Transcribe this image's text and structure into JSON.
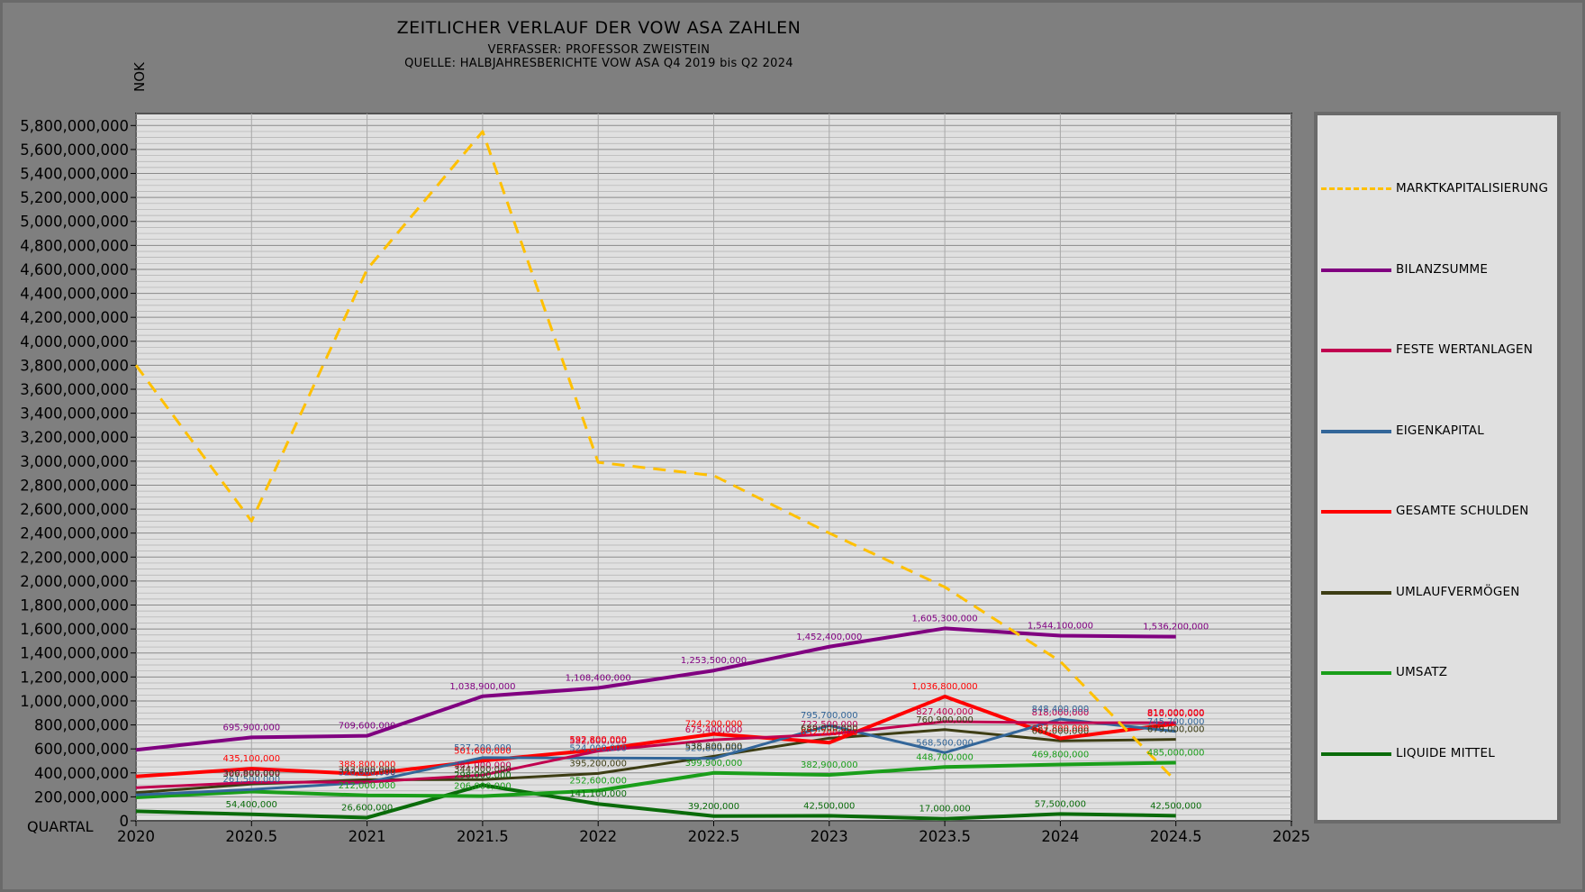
{
  "chart_data": {
    "type": "line",
    "title": "ZEITLICHER VERLAUF DER VOW ASA ZAHLEN",
    "subtitle": [
      "VERFASSER: PROFESSOR ZWEISTEIN",
      "QUELLE: HALBJAHRESBERICHTE VOW ASA Q4 2019 bis Q2 2024"
    ],
    "xlabel": "QUARTAL",
    "ylabel": "NOK",
    "xlim": [
      2020,
      2025
    ],
    "ylim": [
      0,
      5900000000
    ],
    "xticks": [
      "2020",
      "2020.5",
      "2021",
      "2021.5",
      "2022",
      "2022.5",
      "2023",
      "2023.5",
      "2024",
      "2024.5",
      "2025"
    ],
    "yticks": [
      "0",
      "200,000,000",
      "400,000,000",
      "600,000,000",
      "800,000,000",
      "1,000,000,000",
      "1,200,000,000",
      "1,400,000,000",
      "1,600,000,000",
      "1,800,000,000",
      "2,000,000,000",
      "2,200,000,000",
      "2,400,000,000",
      "2,600,000,000",
      "2,800,000,000",
      "3,000,000,000",
      "3,200,000,000",
      "3,400,000,000",
      "3,600,000,000",
      "3,800,000,000",
      "4,000,000,000",
      "4,200,000,000",
      "4,400,000,000",
      "4,600,000,000",
      "4,800,000,000",
      "5,000,000,000",
      "5,200,000,000",
      "5,400,000,000",
      "5,600,000,000",
      "5,800,000,000"
    ],
    "grid": true,
    "legend_position": "right",
    "x": [
      2020,
      2020.5,
      2021,
      2021.5,
      2022,
      2022.5,
      2023,
      2023.5,
      2024,
      2024.5
    ],
    "series": [
      {
        "name": "MARKTKAPITALISIERUNG",
        "color": "#ffc000",
        "dashed": true,
        "width": 3,
        "values": [
          3800000000,
          2500000000,
          4600000000,
          5750000000,
          2990000000,
          2880000000,
          2400000000,
          1950000000,
          1330000000,
          330000000
        ],
        "labels": []
      },
      {
        "name": "BILANZSUMME",
        "color": "#800080",
        "width": 4,
        "values": [
          592000000,
          695900000,
          709600000,
          1038900000,
          1108400000,
          1253500000,
          1452400000,
          1605300000,
          1544100000,
          1536200000
        ],
        "labels": [
          null,
          "695,900,000",
          "709,600,000",
          "1,038,900,000",
          "1,108,400,000",
          "1,253,500,000",
          "1,452,400,000",
          "1,605,300,000",
          "1,544,100,000",
          "1,536,200,000"
        ]
      },
      {
        "name": "FESTE WERTANLAGEN",
        "color": "#c0004f",
        "width": 3,
        "values": [
          276000000,
          320600000,
          323600000,
          381000000,
          582600000,
          675400000,
          722500000,
          827400000,
          818000000,
          818000000
        ],
        "labels": [
          null,
          "320,600,000",
          "323,600,000",
          "381,000,000",
          "582,600,000",
          "675,400,000",
          "722,500,000",
          "827,400,000",
          "818,000,000",
          "818,000,000"
        ]
      },
      {
        "name": "EIGENKAPITAL",
        "color": "#336699",
        "width": 3,
        "values": [
          216000000,
          261500000,
          320600000,
          527200000,
          524000000,
          520800000,
          795700000,
          568500000,
          848400000,
          745700000
        ],
        "labels": [
          null,
          "261,500,000",
          "320,600,000",
          "527,200,000",
          "524,000,000",
          "520,800,000",
          "795,700,000",
          "568,500,000",
          "848,400,000",
          "745,700,000"
        ]
      },
      {
        "name": "GESAMTE SCHULDEN",
        "color": "#ff0000",
        "width": 4,
        "values": [
          370000000,
          435100000,
          388800000,
          501600000,
          592800000,
          724200000,
          652200000,
          1036800000,
          687800000,
          810000000
        ],
        "labels": [
          null,
          "435,100,000",
          "388,800,000",
          "501,600,000",
          "592,800,000",
          "724,200,000",
          "652,200,000",
          "1,036,800,000",
          "687,800,000",
          "810,000,000"
        ]
      },
      {
        "name": "UMLAUFVERMÖGEN",
        "color": "#3d3d14",
        "width": 3,
        "values": [
          235000000,
          306800000,
          343000000,
          344000000,
          395200000,
          538800000,
          689000000,
          760900000,
          667000000,
          679000000
        ],
        "labels": [
          null,
          "306,800,000",
          "343,000,000",
          "344,000,000",
          "395,200,000",
          "538,800,000",
          "689,000,000",
          "760,900,000",
          "667,000,000",
          "679,000,000"
        ]
      },
      {
        "name": "UMSATZ",
        "color": "#1a9e1a",
        "width": 4,
        "values": [
          195000000,
          244000000,
          212000000,
          206000000,
          252600000,
          399900000,
          382900000,
          448700000,
          469800000,
          485000000
        ],
        "labels": [
          null,
          null,
          "212,000,000",
          "206,000,000",
          "252,600,000",
          "399,900,000",
          "382,900,000",
          "448,700,000",
          "469,800,000",
          "485,000,000"
        ]
      },
      {
        "name": "LIQUIDE MITTEL",
        "color": "#0a6b0a",
        "width": 4,
        "values": [
          80000000,
          54400000,
          26600000,
          298000000,
          141100000,
          39200000,
          42500000,
          17000000,
          57500000,
          42500000
        ],
        "labels": [
          null,
          "54,400,000",
          "26,600,000",
          "298,000,000",
          "141,100,000",
          "39,200,000",
          "42,500,000",
          "17,000,000",
          "57,500,000",
          "42,500,000"
        ]
      }
    ]
  }
}
